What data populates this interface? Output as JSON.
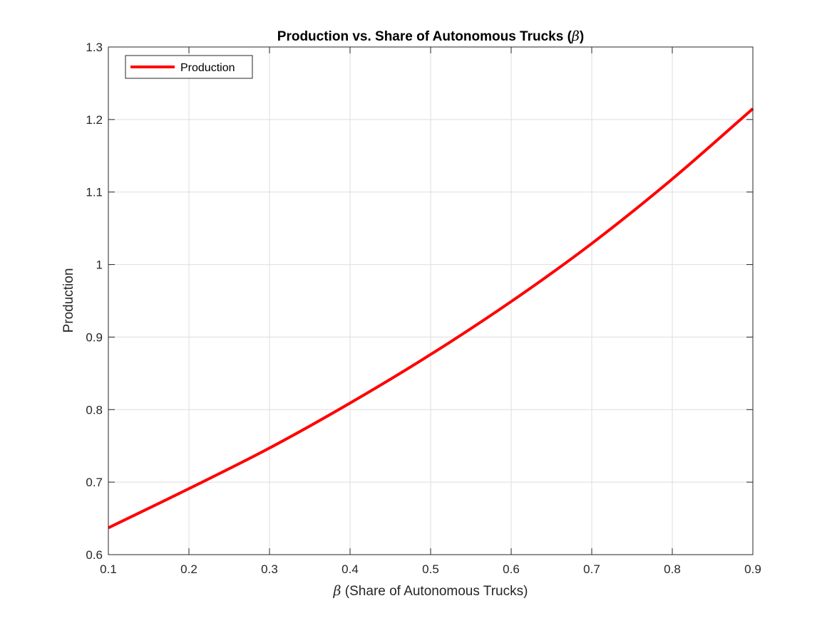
{
  "chart_data": {
    "type": "line",
    "title_main": "Production vs. Share of Autonomous Trucks (",
    "title_symbol": "β",
    "title_close": ")",
    "xlabel_symbol": "β",
    "xlabel_text": " (Share of Autonomous Trucks)",
    "ylabel": "Production",
    "xlim": [
      0.1,
      0.9
    ],
    "ylim": [
      0.6,
      1.3
    ],
    "xticks": [
      "0.1",
      "0.2",
      "0.3",
      "0.4",
      "0.5",
      "0.6",
      "0.7",
      "0.8",
      "0.9"
    ],
    "yticks": [
      "0.6",
      "0.7",
      "0.8",
      "0.9",
      "1",
      "1.1",
      "1.2",
      "1.3"
    ],
    "grid": true,
    "legend_position": "top-left",
    "series": [
      {
        "name": "Production",
        "color": "#ff0000",
        "x": [
          0.1,
          0.2,
          0.3,
          0.4,
          0.5,
          0.6,
          0.7,
          0.8,
          0.9
        ],
        "y": [
          0.637,
          0.691,
          0.747,
          0.809,
          0.876,
          0.949,
          1.029,
          1.118,
          1.215
        ]
      }
    ]
  }
}
